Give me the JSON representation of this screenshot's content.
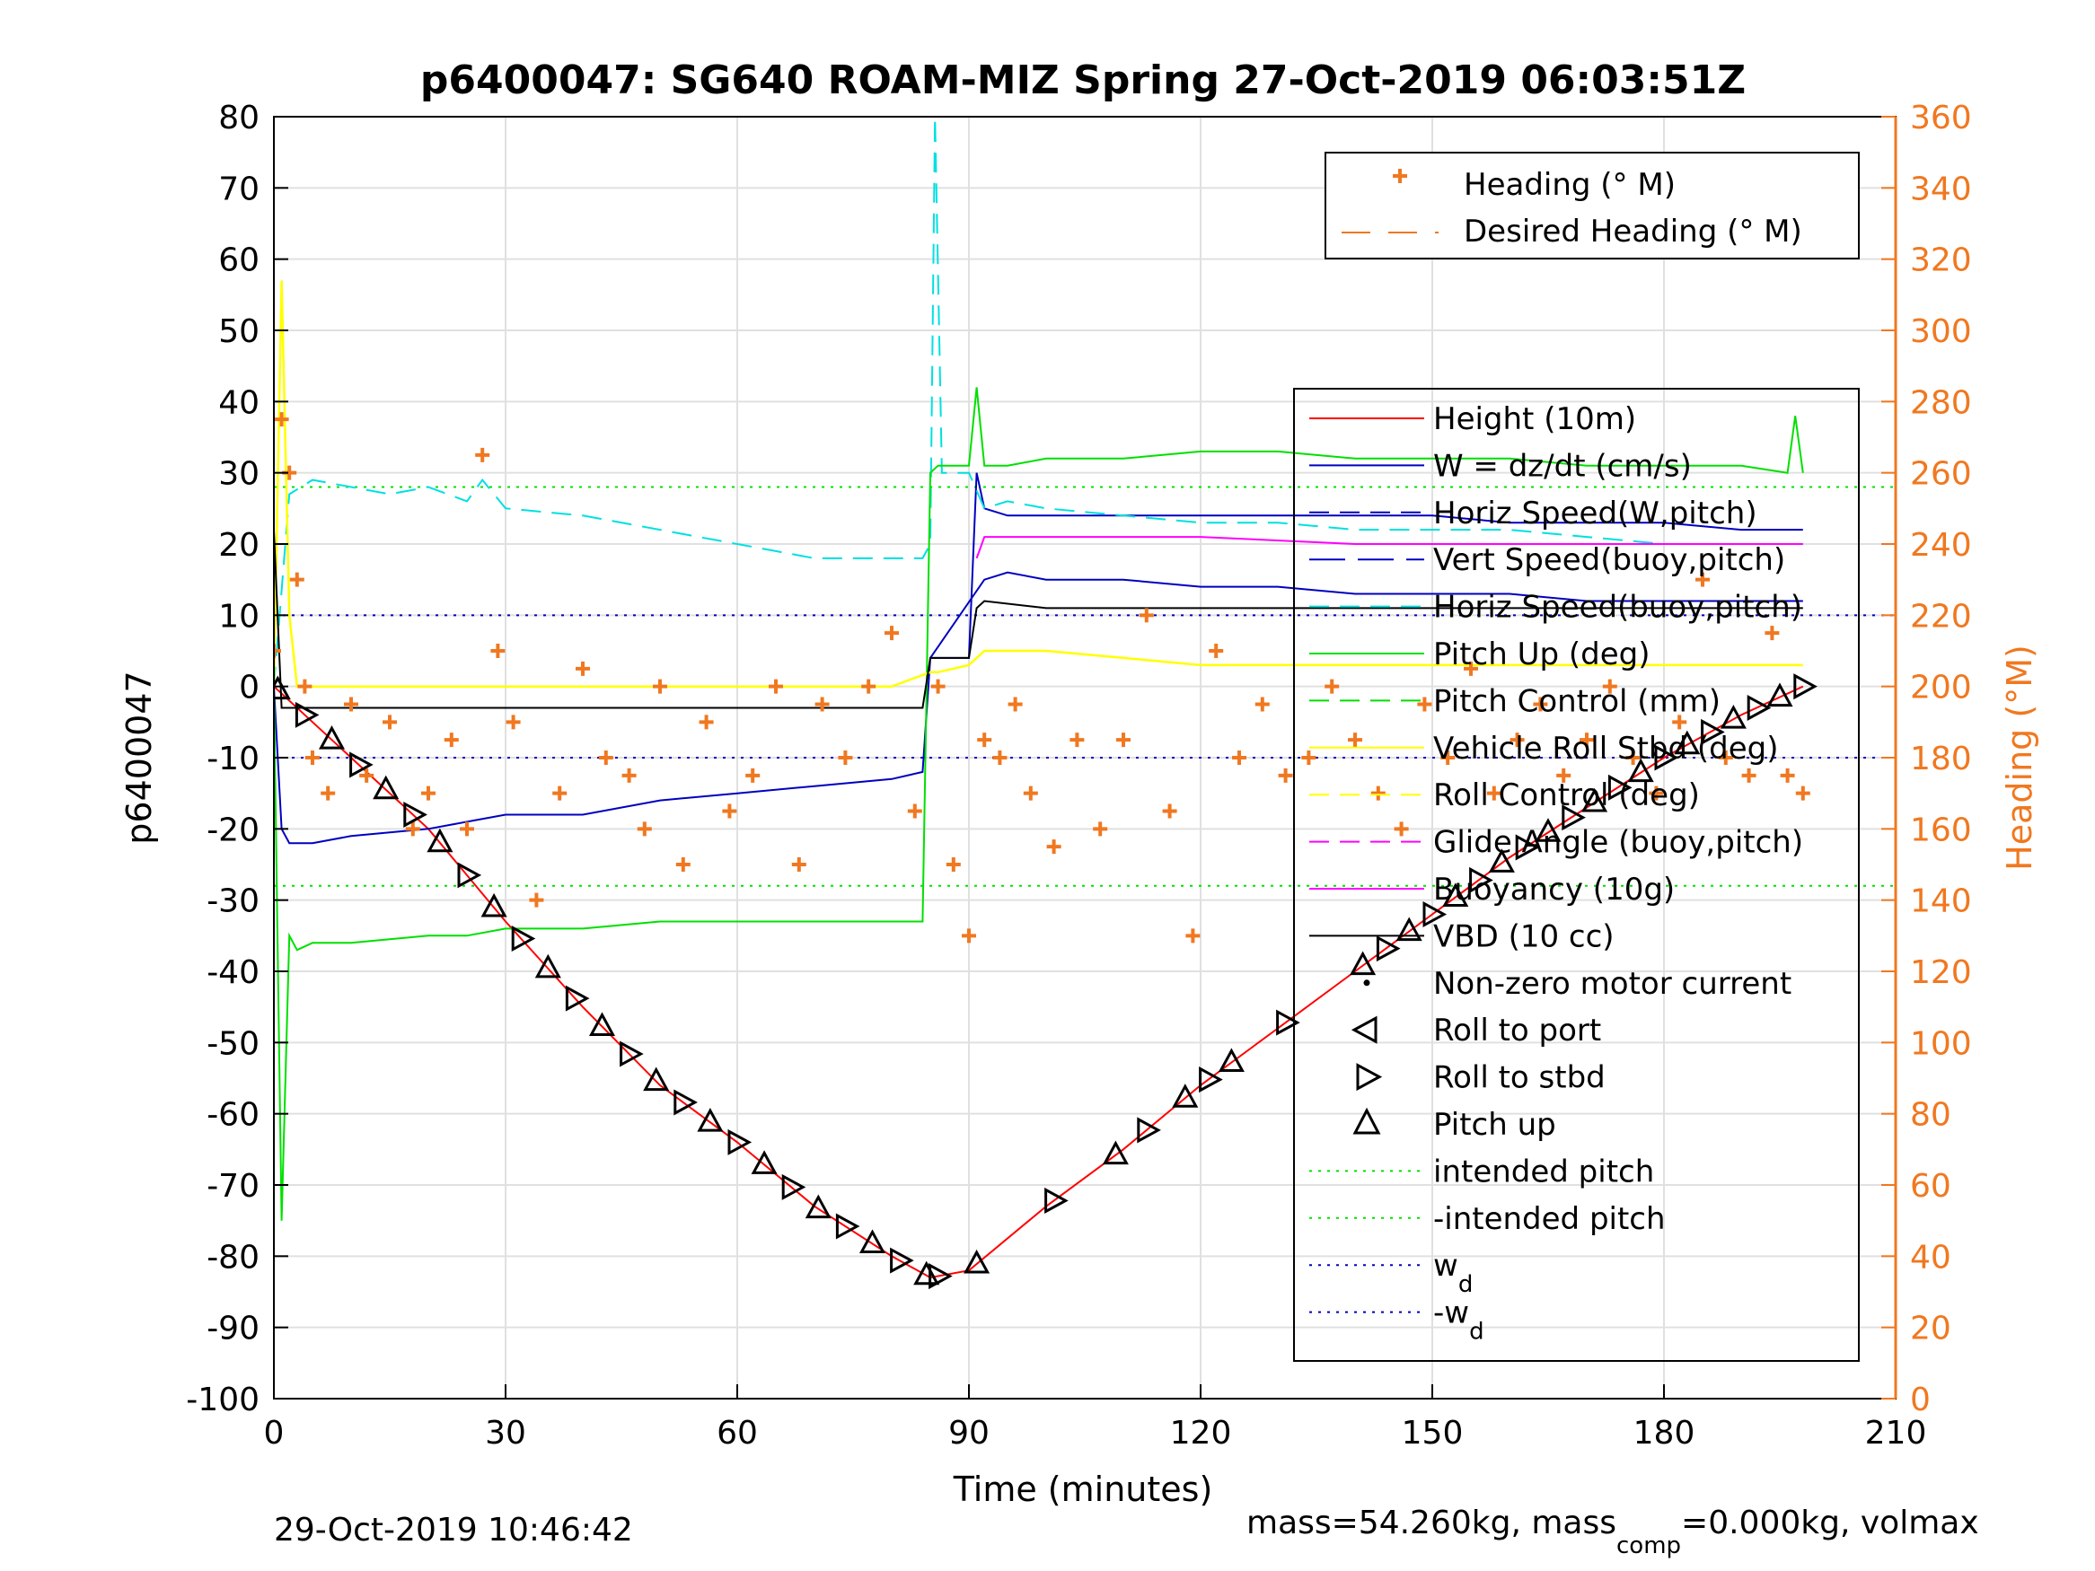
{
  "chart_data": {
    "type": "line",
    "title": "p6400047: SG640 ROAM-MIZ Spring 27-Oct-2019 06:03:51Z",
    "xlabel": "Time (minutes)",
    "ylabel": "p6400047",
    "ylabel_right": "Heading (°M)",
    "xlim": [
      0,
      210
    ],
    "ylim": [
      -100,
      80
    ],
    "ylim_right": [
      0,
      360
    ],
    "x_ticks": [
      "0",
      "30",
      "60",
      "90",
      "120",
      "150",
      "180",
      "210"
    ],
    "y_ticks": [
      "-100",
      "-90",
      "-80",
      "-70",
      "-60",
      "-50",
      "-40",
      "-30",
      "-20",
      "-10",
      "0",
      "10",
      "20",
      "30",
      "40",
      "50",
      "60",
      "70",
      "80"
    ],
    "y_ticks_right": [
      "0",
      "20",
      "40",
      "60",
      "80",
      "100",
      "120",
      "140",
      "160",
      "180",
      "200",
      "220",
      "240",
      "260",
      "280",
      "300",
      "320",
      "340",
      "360"
    ],
    "grid": true,
    "footer_left": "29-Oct-2019 10:46:42",
    "footer_right_part1": "mass=54.260kg, mass",
    "footer_right_sub": "comp",
    "footer_right_part2": "=0.000kg, volmax",
    "legend_right_axis": [
      {
        "label": "Heading (° M)",
        "color": "#f07820",
        "style": "plus"
      },
      {
        "label": "Desired Heading (° M)",
        "color": "#f07820",
        "style": "dashed"
      }
    ],
    "legend_left_axis": [
      {
        "label": "Height (10m)",
        "color": "#ff0000",
        "style": "solid"
      },
      {
        "label": "W = dz/dt (cm/s)",
        "color": "#0000c0",
        "style": "solid"
      },
      {
        "label": "Horiz Speed(W,pitch)",
        "color": "#0000c0",
        "style": "dashed"
      },
      {
        "label": "Vert Speed(buoy,pitch)",
        "color": "#0000c0",
        "style": "longdash"
      },
      {
        "label": "Horiz Speed(buoy,pitch)",
        "color": "#00e0e0",
        "style": "dashed"
      },
      {
        "label": "Pitch Up (deg)",
        "color": "#00e000",
        "style": "solid"
      },
      {
        "label": "Pitch Control (mm)",
        "color": "#00e000",
        "style": "dashed"
      },
      {
        "label": "Vehicle Roll Stbd (deg)",
        "color": "#ffff00",
        "style": "solid"
      },
      {
        "label": "Roll Control (deg)",
        "color": "#ffff00",
        "style": "dashed"
      },
      {
        "label": "Glide Angle (buoy,pitch)",
        "color": "#ff00ff",
        "style": "dashed"
      },
      {
        "label": "Buoyancy (10g)",
        "color": "#ff00ff",
        "style": "solid"
      },
      {
        "label": "VBD (10 cc)",
        "color": "#000000",
        "style": "solid"
      },
      {
        "label": "Non-zero motor current",
        "color": "#000000",
        "style": "dot"
      },
      {
        "label": "Roll to port",
        "color": "#000000",
        "style": "tri-left"
      },
      {
        "label": "Roll to stbd",
        "color": "#000000",
        "style": "tri-right"
      },
      {
        "label": "Pitch up",
        "color": "#000000",
        "style": "tri-up"
      },
      {
        "label": "intended pitch",
        "color": "#00e000",
        "style": "dotted"
      },
      {
        "label": "-intended pitch",
        "color": "#00e000",
        "style": "dotted"
      },
      {
        "label": "w",
        "sub": "d",
        "color": "#0000c0",
        "style": "dotted"
      },
      {
        "label": "-w",
        "sub": "d",
        "color": "#0000c0",
        "style": "dotted"
      }
    ],
    "series": [
      {
        "name": "Height (10m)",
        "axis": "left",
        "color": "#ff0000",
        "x": [
          0,
          5,
          10,
          20,
          30,
          40,
          50,
          60,
          70,
          80,
          85,
          90,
          100,
          110,
          120,
          130,
          140,
          150,
          160,
          170,
          180,
          190,
          198
        ],
        "values": [
          0,
          -5,
          -10,
          -20,
          -33,
          -45,
          -56,
          -64,
          -73,
          -80,
          -83,
          -82,
          -73,
          -65,
          -56,
          -48,
          -40,
          -32,
          -24,
          -17,
          -10,
          -4,
          0
        ]
      },
      {
        "name": "W = dz/dt (cm/s)",
        "axis": "left",
        "color": "#0000c0",
        "x": [
          0,
          1,
          2,
          5,
          10,
          20,
          25,
          30,
          40,
          50,
          60,
          70,
          80,
          84,
          85,
          90,
          91,
          92,
          95,
          100,
          110,
          120,
          130,
          140,
          150,
          160,
          170,
          180,
          190,
          198
        ],
        "values": [
          0,
          -20,
          -22,
          -22,
          -21,
          -20,
          -19,
          -18,
          -18,
          -16,
          -15,
          -14,
          -13,
          -12,
          4,
          4,
          30,
          25,
          24,
          24,
          24,
          24,
          24,
          24,
          24,
          23,
          23,
          23,
          22,
          22
        ]
      },
      {
        "name": "Horiz Speed(W,pitch)",
        "axis": "left",
        "color": "#0000c0",
        "x": [
          85,
          92,
          95,
          100,
          110,
          120,
          130,
          140,
          150,
          160,
          170,
          180,
          190,
          198
        ],
        "values": [
          4,
          15,
          16,
          15,
          15,
          14,
          14,
          13,
          13,
          13,
          12,
          12,
          12,
          12
        ]
      },
      {
        "name": "Horiz Speed(buoy,pitch)",
        "axis": "left",
        "color": "#00e0e0",
        "x": [
          0,
          2,
          5,
          10,
          15,
          20,
          25,
          27,
          30,
          40,
          50,
          55,
          60,
          65,
          70,
          75,
          80,
          84,
          85,
          85.6,
          86.5,
          88,
          90,
          92,
          95,
          100,
          110,
          120,
          130,
          140,
          150,
          160,
          170,
          180,
          190,
          198
        ],
        "values": [
          0,
          27,
          29,
          28,
          27,
          28,
          26,
          29,
          25,
          24,
          22,
          21,
          20,
          19,
          18,
          18,
          18,
          18,
          20,
          80,
          30,
          30,
          30,
          25,
          26,
          25,
          24,
          23,
          23,
          22,
          22,
          22,
          21,
          20,
          20,
          20
        ]
      },
      {
        "name": "Pitch Up (deg)",
        "axis": "left",
        "color": "#00e000",
        "x": [
          0,
          1,
          2,
          3,
          5,
          10,
          20,
          25,
          30,
          40,
          50,
          60,
          70,
          80,
          84,
          85,
          86,
          90,
          91,
          92,
          95,
          100,
          110,
          120,
          130,
          140,
          150,
          160,
          170,
          180,
          190,
          196,
          197,
          198
        ],
        "values": [
          0,
          -75,
          -35,
          -37,
          -36,
          -36,
          -35,
          -35,
          -34,
          -34,
          -33,
          -33,
          -33,
          -33,
          -33,
          30,
          31,
          31,
          42,
          31,
          31,
          32,
          32,
          33,
          33,
          32,
          32,
          32,
          31,
          31,
          31,
          30,
          38,
          30
        ]
      },
      {
        "name": "Vehicle Roll Stbd (deg)",
        "axis": "left",
        "color": "#ffff00",
        "x": [
          0,
          1,
          2,
          3,
          5,
          10,
          20,
          30,
          40,
          50,
          60,
          70,
          80,
          85,
          86,
          90,
          92,
          100,
          110,
          120,
          130,
          140,
          150,
          160,
          170,
          180,
          190,
          198
        ],
        "values": [
          0,
          57,
          10,
          0,
          0,
          0,
          0,
          0,
          0,
          0,
          0,
          0,
          0,
          2,
          2,
          3,
          5,
          5,
          4,
          3,
          3,
          3,
          3,
          3,
          3,
          3,
          3,
          3
        ]
      },
      {
        "name": "Buoyancy (10g)",
        "axis": "left",
        "color": "#ff00ff",
        "x": [
          91,
          92,
          100,
          120,
          140,
          160,
          180,
          198
        ],
        "values": [
          18,
          21,
          21,
          21,
          20,
          20,
          20,
          20
        ]
      },
      {
        "name": "VBD (10 cc)",
        "axis": "left",
        "color": "#000000",
        "x": [
          0,
          1,
          2,
          5,
          20,
          40,
          60,
          80,
          84,
          85,
          90,
          91,
          92,
          100,
          120,
          140,
          160,
          180,
          198
        ],
        "values": [
          22,
          -3,
          -3,
          -3,
          -3,
          -3,
          -3,
          -3,
          -3,
          4,
          4,
          11,
          12,
          11,
          11,
          11,
          11,
          11,
          11
        ]
      },
      {
        "name": "Heading (° M)",
        "axis": "right",
        "color": "#f07820",
        "x": [
          0,
          1,
          2,
          3,
          4,
          5,
          7,
          10,
          12,
          15,
          18,
          20,
          23,
          25,
          27,
          29,
          31,
          34,
          37,
          40,
          43,
          46,
          48,
          50,
          53,
          56,
          59,
          62,
          65,
          68,
          71,
          74,
          77,
          80,
          83,
          86,
          88,
          90,
          92,
          94,
          96,
          98,
          101,
          104,
          107,
          110,
          113,
          116,
          119,
          122,
          125,
          128,
          131,
          134,
          137,
          140,
          143,
          146,
          149,
          152,
          155,
          158,
          161,
          164,
          167,
          170,
          173,
          176,
          179,
          182,
          185,
          188,
          191,
          194,
          196,
          198
        ],
        "values": [
          210,
          275,
          260,
          230,
          200,
          180,
          170,
          195,
          175,
          190,
          160,
          170,
          185,
          160,
          265,
          210,
          190,
          140,
          170,
          205,
          180,
          175,
          160,
          200,
          150,
          190,
          165,
          175,
          200,
          150,
          195,
          180,
          200,
          215,
          165,
          200,
          150,
          130,
          185,
          180,
          195,
          170,
          155,
          185,
          160,
          185,
          220,
          165,
          130,
          210,
          180,
          195,
          175,
          180,
          200,
          185,
          170,
          160,
          195,
          180,
          205,
          170,
          185,
          195,
          175,
          185,
          200,
          180,
          170,
          190,
          230,
          180,
          175,
          215,
          175,
          170
        ]
      }
    ]
  }
}
